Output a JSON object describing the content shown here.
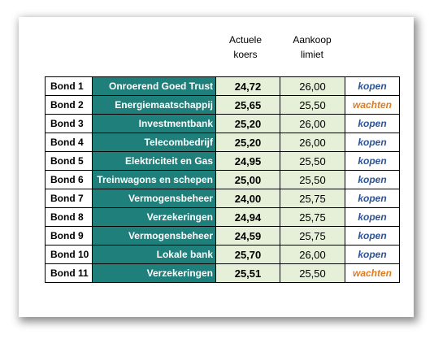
{
  "headers": {
    "koers_line1": "Actuele",
    "koers_line2": "koers",
    "limiet_line1": "Aankoop",
    "limiet_line2": "limiet"
  },
  "colors": {
    "sector_fill": "#1f7f7a",
    "value_fill": "#e6f0d9",
    "kopen": "#2f5496",
    "wachten": "#e07b1f"
  },
  "rows": [
    {
      "name": "Bond 1",
      "sector": "Onroerend Goed Trust",
      "price": "24,72",
      "limit": "26,00",
      "action": "kopen"
    },
    {
      "name": "Bond 2",
      "sector": "Energiemaatschappij",
      "price": "25,65",
      "limit": "25,50",
      "action": "wachten"
    },
    {
      "name": "Bond 3",
      "sector": "Investmentbank",
      "price": "25,20",
      "limit": "26,00",
      "action": "kopen"
    },
    {
      "name": "Bond 4",
      "sector": "Telecombedrijf",
      "price": "25,20",
      "limit": "26,00",
      "action": "kopen"
    },
    {
      "name": "Bond 5",
      "sector": "Elektriciteit en Gas",
      "price": "24,95",
      "limit": "25,50",
      "action": "kopen"
    },
    {
      "name": "Bond 6",
      "sector": "Treinwagons en schepen",
      "price": "25,00",
      "limit": "25,50",
      "action": "kopen"
    },
    {
      "name": "Bond 7",
      "sector": "Vermogensbeheer",
      "price": "24,00",
      "limit": "25,75",
      "action": "kopen"
    },
    {
      "name": "Bond 8",
      "sector": "Verzekeringen",
      "price": "24,94",
      "limit": "25,75",
      "action": "kopen"
    },
    {
      "name": "Bond 9",
      "sector": "Vermogensbeheer",
      "price": "24,59",
      "limit": "25,75",
      "action": "kopen"
    },
    {
      "name": "Bond 10",
      "sector": "Lokale bank",
      "price": "25,70",
      "limit": "26,00",
      "action": "kopen"
    },
    {
      "name": "Bond 11",
      "sector": "Verzekeringen",
      "price": "25,51",
      "limit": "25,50",
      "action": "wachten"
    }
  ]
}
